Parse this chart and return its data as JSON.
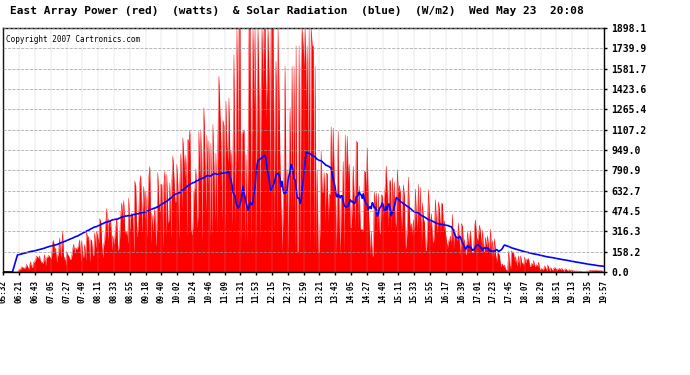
{
  "title": "East Array Power (red)  (watts)  & Solar Radiation  (blue)  (W/m2)  Wed May 23  20:08",
  "copyright": "Copyright 2007 Cartronics.com",
  "y_ticks": [
    0.0,
    158.2,
    316.3,
    474.5,
    632.7,
    790.9,
    949.0,
    1107.2,
    1265.4,
    1423.6,
    1581.7,
    1739.9,
    1898.1
  ],
  "ymax": 1898.1,
  "ymin": 0.0,
  "x_labels": [
    "05:32",
    "06:21",
    "06:43",
    "07:05",
    "07:27",
    "07:49",
    "08:11",
    "08:33",
    "08:55",
    "09:18",
    "09:40",
    "10:02",
    "10:24",
    "10:46",
    "11:09",
    "11:31",
    "11:53",
    "12:15",
    "12:37",
    "12:59",
    "13:21",
    "13:43",
    "14:05",
    "14:27",
    "14:49",
    "15:11",
    "15:33",
    "15:55",
    "16:17",
    "16:39",
    "17:01",
    "17:23",
    "17:45",
    "18:07",
    "18:29",
    "18:51",
    "19:13",
    "19:35",
    "19:57"
  ],
  "background_color": "#ffffff",
  "plot_bg_color": "#ffffff",
  "red_color": "#ff0000",
  "blue_color": "#0000ff",
  "grid_color": "#808080"
}
